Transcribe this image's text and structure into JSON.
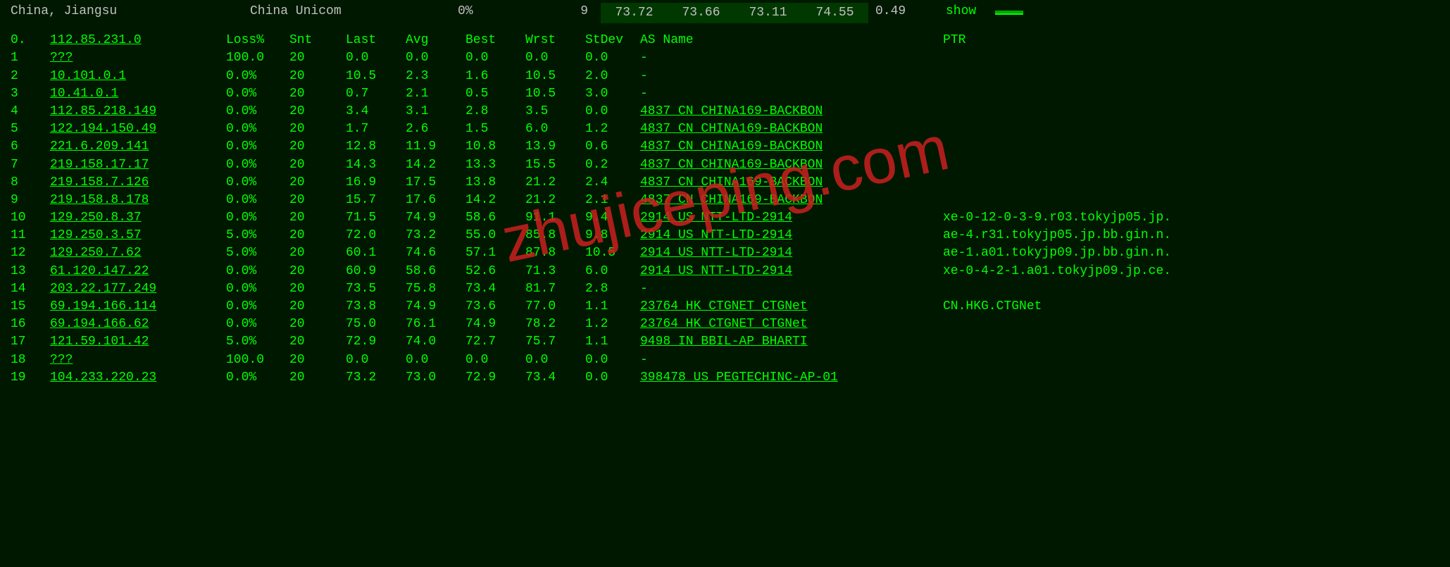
{
  "header": {
    "location": "China, Jiangsu",
    "isp": "China Unicom",
    "loss_pct": "0%",
    "count": "9",
    "val1": "73.72",
    "val2": "73.66",
    "val3": "73.11",
    "val4": "74.55",
    "stdev": "0.49",
    "action": "show"
  },
  "columns": {
    "hop": "0.",
    "ip": "112.85.231.0",
    "loss": "Loss%",
    "snt": "Snt",
    "last": "Last",
    "avg": "Avg",
    "best": "Best",
    "wrst": "Wrst",
    "stdev": "StDev",
    "asname": "AS Name",
    "ptr": "PTR"
  },
  "rows": [
    {
      "hop": "1",
      "ip": "???",
      "loss": "100.0",
      "snt": "20",
      "last": "0.0",
      "avg": "0.0",
      "best": "0.0",
      "wrst": "0.0",
      "stdev": "0.0",
      "asname": "-",
      "ptr": ""
    },
    {
      "hop": "2",
      "ip": "10.101.0.1",
      "loss": "0.0%",
      "snt": "20",
      "last": "10.5",
      "avg": "2.3",
      "best": "1.6",
      "wrst": "10.5",
      "stdev": "2.0",
      "asname": "-",
      "ptr": ""
    },
    {
      "hop": "3",
      "ip": "10.41.0.1",
      "loss": "0.0%",
      "snt": "20",
      "last": "0.7",
      "avg": "2.1",
      "best": "0.5",
      "wrst": "10.5",
      "stdev": "3.0",
      "asname": "-",
      "ptr": ""
    },
    {
      "hop": "4",
      "ip": "112.85.218.149",
      "loss": "0.0%",
      "snt": "20",
      "last": "3.4",
      "avg": "3.1",
      "best": "2.8",
      "wrst": "3.5",
      "stdev": "0.0",
      "asname": "4837  CN CHINA169-BACKBON",
      "ptr": ""
    },
    {
      "hop": "5",
      "ip": "122.194.150.49",
      "loss": "0.0%",
      "snt": "20",
      "last": "1.7",
      "avg": "2.6",
      "best": "1.5",
      "wrst": "6.0",
      "stdev": "1.2",
      "asname": "4837  CN CHINA169-BACKBON",
      "ptr": ""
    },
    {
      "hop": "6",
      "ip": "221.6.209.141",
      "loss": "0.0%",
      "snt": "20",
      "last": "12.8",
      "avg": "11.9",
      "best": "10.8",
      "wrst": "13.9",
      "stdev": "0.6",
      "asname": "4837  CN CHINA169-BACKBON",
      "ptr": ""
    },
    {
      "hop": "7",
      "ip": "219.158.17.17",
      "loss": "0.0%",
      "snt": "20",
      "last": "14.3",
      "avg": "14.2",
      "best": "13.3",
      "wrst": "15.5",
      "stdev": "0.2",
      "asname": "4837  CN CHINA169-BACKBON",
      "ptr": ""
    },
    {
      "hop": "8",
      "ip": "219.158.7.126",
      "loss": "0.0%",
      "snt": "20",
      "last": "16.9",
      "avg": "17.5",
      "best": "13.8",
      "wrst": "21.2",
      "stdev": "2.4",
      "asname": "4837  CN CHINA169-BACKBON",
      "ptr": ""
    },
    {
      "hop": "9",
      "ip": "219.158.8.178",
      "loss": "0.0%",
      "snt": "20",
      "last": "15.7",
      "avg": "17.6",
      "best": "14.2",
      "wrst": "21.2",
      "stdev": "2.1",
      "asname": "4837  CN CHINA169-BACKBON",
      "ptr": ""
    },
    {
      "hop": "10",
      "ip": "129.250.8.37",
      "loss": "0.0%",
      "snt": "20",
      "last": "71.5",
      "avg": "74.9",
      "best": "58.6",
      "wrst": "91.1",
      "stdev": "9.4",
      "asname": "2914  US NTT-LTD-2914",
      "ptr": "xe-0-12-0-3-9.r03.tokyjp05.jp."
    },
    {
      "hop": "11",
      "ip": "129.250.3.57",
      "loss": "5.0%",
      "snt": "20",
      "last": "72.0",
      "avg": "73.2",
      "best": "55.0",
      "wrst": "85.8",
      "stdev": "9.8",
      "asname": "2914  US NTT-LTD-2914",
      "ptr": "ae-4.r31.tokyjp05.jp.bb.gin.n."
    },
    {
      "hop": "12",
      "ip": "129.250.7.62",
      "loss": "5.0%",
      "snt": "20",
      "last": "60.1",
      "avg": "74.6",
      "best": "57.1",
      "wrst": "87.8",
      "stdev": "10.5",
      "asname": "2914  US NTT-LTD-2914",
      "ptr": "ae-1.a01.tokyjp09.jp.bb.gin.n."
    },
    {
      "hop": "13",
      "ip": "61.120.147.22",
      "loss": "0.0%",
      "snt": "20",
      "last": "60.9",
      "avg": "58.6",
      "best": "52.6",
      "wrst": "71.3",
      "stdev": "6.0",
      "asname": "2914  US NTT-LTD-2914",
      "ptr": "xe-0-4-2-1.a01.tokyjp09.jp.ce."
    },
    {
      "hop": "14",
      "ip": "203.22.177.249",
      "loss": "0.0%",
      "snt": "20",
      "last": "73.5",
      "avg": "75.8",
      "best": "73.4",
      "wrst": "81.7",
      "stdev": "2.8",
      "asname": "-",
      "ptr": ""
    },
    {
      "hop": "15",
      "ip": "69.194.166.114",
      "loss": "0.0%",
      "snt": "20",
      "last": "73.8",
      "avg": "74.9",
      "best": "73.6",
      "wrst": "77.0",
      "stdev": "1.1",
      "asname": "23764 HK CTGNET CTGNet",
      "ptr": "CN.HKG.CTGNet"
    },
    {
      "hop": "16",
      "ip": "69.194.166.62",
      "loss": "0.0%",
      "snt": "20",
      "last": "75.0",
      "avg": "76.1",
      "best": "74.9",
      "wrst": "78.2",
      "stdev": "1.2",
      "asname": "23764 HK CTGNET CTGNet",
      "ptr": ""
    },
    {
      "hop": "17",
      "ip": "121.59.101.42",
      "loss": "5.0%",
      "snt": "20",
      "last": "72.9",
      "avg": "74.0",
      "best": "72.7",
      "wrst": "75.7",
      "stdev": "1.1",
      "asname": "9498  IN BBIL-AP BHARTI",
      "ptr": ""
    },
    {
      "hop": "18",
      "ip": "???",
      "loss": "100.0",
      "snt": "20",
      "last": "0.0",
      "avg": "0.0",
      "best": "0.0",
      "wrst": "0.0",
      "stdev": "0.0",
      "asname": "-",
      "ptr": ""
    },
    {
      "hop": "19",
      "ip": "104.233.220.23",
      "loss": "0.0%",
      "snt": "20",
      "last": "73.2",
      "avg": "73.0",
      "best": "72.9",
      "wrst": "73.4",
      "stdev": "0.0",
      "asname": "398478 US PEGTECHINC-AP-01",
      "ptr": ""
    }
  ],
  "watermark": "zhujiceping.com",
  "colors": {
    "background": "#001800",
    "text": "#00ff00",
    "header_text": "#c0c0c0",
    "highlight_bg": "#003800",
    "watermark": "#cc2020"
  }
}
